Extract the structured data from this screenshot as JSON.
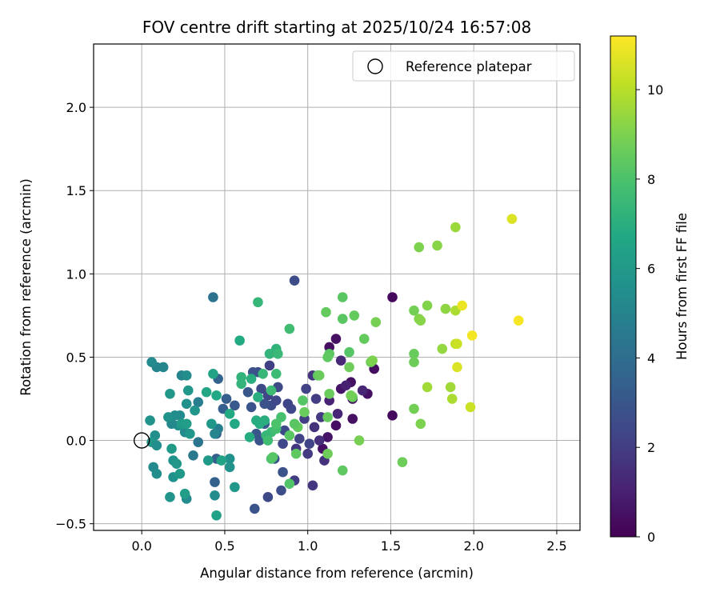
{
  "chart_data": {
    "type": "scatter",
    "title": "FOV centre drift starting at 2025/10/24 16:57:08",
    "xlabel": "Angular distance from reference (arcmin)",
    "ylabel": "Rotation from reference (arcmin)",
    "xlim": [
      -0.29,
      2.64
    ],
    "ylim": [
      -0.54,
      2.38
    ],
    "xticks": [
      "0.0",
      "0.5",
      "1.0",
      "1.5",
      "2.0",
      "2.5"
    ],
    "xtick_values": [
      0.0,
      0.5,
      1.0,
      1.5,
      2.0,
      2.5
    ],
    "yticks": [
      "−0.5",
      "0.0",
      "0.5",
      "1.0",
      "1.5",
      "2.0"
    ],
    "ytick_values": [
      -0.5,
      0.0,
      0.5,
      1.0,
      1.5,
      2.0
    ],
    "grid": true,
    "colormap": "viridis",
    "colorbar": {
      "label": "Hours from first FF file",
      "min": 0,
      "max": 11.2,
      "ticks": [
        "0",
        "2",
        "4",
        "6",
        "8",
        "10"
      ],
      "tick_values": [
        0,
        2,
        4,
        6,
        8,
        10
      ]
    },
    "legend": {
      "position": "top-right",
      "entries": [
        "Reference platepar"
      ]
    },
    "reference_point": {
      "x": 0.0,
      "y": 0.0
    },
    "points": [
      {
        "x": 1.51,
        "y": 0.86,
        "h": 0.3
      },
      {
        "x": 1.51,
        "y": 0.15,
        "h": 0.3
      },
      {
        "x": 1.4,
        "y": 0.43,
        "h": 0.4
      },
      {
        "x": 1.36,
        "y": 0.28,
        "h": 0.5
      },
      {
        "x": 1.17,
        "y": 0.61,
        "h": 0.5
      },
      {
        "x": 1.13,
        "y": 0.56,
        "h": 0.4
      },
      {
        "x": 1.27,
        "y": 0.25,
        "h": 0.6
      },
      {
        "x": 1.26,
        "y": 0.35,
        "h": 0.5
      },
      {
        "x": 1.2,
        "y": 0.31,
        "h": 0.6
      },
      {
        "x": 1.17,
        "y": 0.09,
        "h": 0.4
      },
      {
        "x": 1.12,
        "y": 0.02,
        "h": 0.6
      },
      {
        "x": 1.09,
        "y": -0.05,
        "h": 0.5
      },
      {
        "x": 1.27,
        "y": 0.13,
        "h": 0.5
      },
      {
        "x": 1.33,
        "y": 0.3,
        "h": 1.2
      },
      {
        "x": 1.23,
        "y": 0.33,
        "h": 1.0
      },
      {
        "x": 1.18,
        "y": 0.16,
        "h": 1.2
      },
      {
        "x": 1.13,
        "y": 0.24,
        "h": 1.1
      },
      {
        "x": 1.2,
        "y": 0.48,
        "h": 1.3
      },
      {
        "x": 0.92,
        "y": 0.96,
        "h": 2.6
      },
      {
        "x": 0.92,
        "y": -0.24,
        "h": 2.0
      },
      {
        "x": 1.03,
        "y": -0.27,
        "h": 1.8
      },
      {
        "x": 1.03,
        "y": 0.39,
        "h": 1.7
      },
      {
        "x": 1.07,
        "y": 0.0,
        "h": 1.5
      },
      {
        "x": 1.1,
        "y": -0.12,
        "h": 1.6
      },
      {
        "x": 1.04,
        "y": 0.08,
        "h": 1.6
      },
      {
        "x": 1.0,
        "y": -0.08,
        "h": 1.9
      },
      {
        "x": 0.98,
        "y": 0.13,
        "h": 2.0
      },
      {
        "x": 1.05,
        "y": 0.25,
        "h": 2.0
      },
      {
        "x": 1.08,
        "y": 0.14,
        "h": 1.9
      },
      {
        "x": 0.99,
        "y": 0.31,
        "h": 2.2
      },
      {
        "x": 0.95,
        "y": 0.01,
        "h": 2.2
      },
      {
        "x": 0.93,
        "y": -0.05,
        "h": 1.8
      },
      {
        "x": 1.01,
        "y": -0.02,
        "h": 2.3
      },
      {
        "x": 0.9,
        "y": 0.19,
        "h": 2.4
      },
      {
        "x": 0.88,
        "y": 0.22,
        "h": 2.3
      },
      {
        "x": 0.85,
        "y": -0.02,
        "h": 2.4
      },
      {
        "x": 0.86,
        "y": 0.06,
        "h": 2.5
      },
      {
        "x": 0.82,
        "y": 0.32,
        "h": 2.5
      },
      {
        "x": 0.76,
        "y": 0.27,
        "h": 2.3
      },
      {
        "x": 0.77,
        "y": 0.45,
        "h": 2.1
      },
      {
        "x": 0.78,
        "y": 0.21,
        "h": 2.6
      },
      {
        "x": 0.81,
        "y": 0.24,
        "h": 2.4
      },
      {
        "x": 0.74,
        "y": 0.22,
        "h": 2.8
      },
      {
        "x": 0.72,
        "y": 0.31,
        "h": 2.5
      },
      {
        "x": 0.7,
        "y": 0.41,
        "h": 2.6
      },
      {
        "x": 0.67,
        "y": 0.41,
        "h": 2.8
      },
      {
        "x": 0.66,
        "y": 0.2,
        "h": 2.9
      },
      {
        "x": 0.64,
        "y": 0.29,
        "h": 3.0
      },
      {
        "x": 0.68,
        "y": -0.41,
        "h": 2.9
      },
      {
        "x": 0.76,
        "y": -0.34,
        "h": 2.5
      },
      {
        "x": 0.84,
        "y": -0.3,
        "h": 2.6
      },
      {
        "x": 0.85,
        "y": -0.19,
        "h": 2.8
      },
      {
        "x": 0.8,
        "y": -0.11,
        "h": 2.8
      },
      {
        "x": 0.71,
        "y": 0.0,
        "h": 2.9
      },
      {
        "x": 0.69,
        "y": 0.04,
        "h": 3.0
      },
      {
        "x": 0.74,
        "y": 0.1,
        "h": 3.1
      },
      {
        "x": 0.56,
        "y": 0.21,
        "h": 3.1
      },
      {
        "x": 0.51,
        "y": 0.25,
        "h": 3.3
      },
      {
        "x": 0.49,
        "y": 0.19,
        "h": 3.4
      },
      {
        "x": 0.46,
        "y": 0.37,
        "h": 3.6
      },
      {
        "x": 0.45,
        "y": 0.04,
        "h": 3.3
      },
      {
        "x": 0.45,
        "y": -0.11,
        "h": 3.4
      },
      {
        "x": 0.44,
        "y": -0.25,
        "h": 3.5
      },
      {
        "x": 0.43,
        "y": 0.86,
        "h": 4.2
      },
      {
        "x": 0.34,
        "y": -0.01,
        "h": 4.4
      },
      {
        "x": 0.31,
        "y": -0.09,
        "h": 4.5
      },
      {
        "x": 0.34,
        "y": 0.23,
        "h": 4.7
      },
      {
        "x": 0.24,
        "y": 0.39,
        "h": 5.0
      },
      {
        "x": 0.46,
        "y": 0.07,
        "h": 4.7
      },
      {
        "x": 0.27,
        "y": -0.35,
        "h": 5.3
      },
      {
        "x": 0.44,
        "y": -0.33,
        "h": 5.4
      },
      {
        "x": 0.44,
        "y": 0.04,
        "h": 5.0
      },
      {
        "x": 0.53,
        "y": -0.11,
        "h": 5.6
      },
      {
        "x": 0.53,
        "y": -0.16,
        "h": 5.7
      },
      {
        "x": 0.56,
        "y": -0.28,
        "h": 5.9
      },
      {
        "x": 0.42,
        "y": 0.1,
        "h": 5.9
      },
      {
        "x": 0.27,
        "y": 0.22,
        "h": 5.6
      },
      {
        "x": 0.26,
        "y": 0.05,
        "h": 5.3
      },
      {
        "x": 0.27,
        "y": 0.39,
        "h": 5.4
      },
      {
        "x": 0.32,
        "y": 0.18,
        "h": 5.8
      },
      {
        "x": 0.28,
        "y": 0.3,
        "h": 5.9
      },
      {
        "x": 0.23,
        "y": 0.15,
        "h": 5.3
      },
      {
        "x": 0.22,
        "y": 0.09,
        "h": 5.6
      },
      {
        "x": 0.2,
        "y": 0.15,
        "h": 5.4
      },
      {
        "x": 0.18,
        "y": 0.1,
        "h": 5.2
      },
      {
        "x": 0.16,
        "y": 0.14,
        "h": 5.6
      },
      {
        "x": 0.13,
        "y": 0.44,
        "h": 5.1
      },
      {
        "x": 0.09,
        "y": 0.44,
        "h": 5.0
      },
      {
        "x": 0.06,
        "y": 0.47,
        "h": 5.3
      },
      {
        "x": 0.08,
        "y": 0.03,
        "h": 5.5
      },
      {
        "x": 0.05,
        "y": 0.12,
        "h": 5.7
      },
      {
        "x": 0.06,
        "y": -0.01,
        "h": 5.9
      },
      {
        "x": 0.09,
        "y": -0.03,
        "h": 5.5
      },
      {
        "x": 0.07,
        "y": -0.16,
        "h": 5.3
      },
      {
        "x": 0.09,
        "y": -0.2,
        "h": 5.4
      },
      {
        "x": 0.17,
        "y": -0.34,
        "h": 5.8
      },
      {
        "x": 0.19,
        "y": -0.22,
        "h": 5.6
      },
      {
        "x": 0.19,
        "y": -0.12,
        "h": 5.7
      },
      {
        "x": 0.21,
        "y": -0.14,
        "h": 5.9
      },
      {
        "x": 0.23,
        "y": -0.2,
        "h": 6.0
      },
      {
        "x": 0.18,
        "y": -0.05,
        "h": 6.1
      },
      {
        "x": 0.26,
        "y": -0.32,
        "h": 6.2
      },
      {
        "x": 0.17,
        "y": 0.28,
        "h": 5.9
      },
      {
        "x": 0.24,
        "y": 0.1,
        "h": 6.1
      },
      {
        "x": 0.27,
        "y": 0.1,
        "h": 6.2
      },
      {
        "x": 0.29,
        "y": 0.04,
        "h": 5.9
      },
      {
        "x": 0.4,
        "y": -0.12,
        "h": 6.0
      },
      {
        "x": 0.45,
        "y": -0.45,
        "h": 6.4
      },
      {
        "x": 0.48,
        "y": -0.12,
        "h": 6.5
      },
      {
        "x": 0.43,
        "y": 0.4,
        "h": 6.5
      },
      {
        "x": 0.39,
        "y": 0.29,
        "h": 6.6
      },
      {
        "x": 0.45,
        "y": 0.27,
        "h": 6.7
      },
      {
        "x": 0.56,
        "y": 0.1,
        "h": 6.7
      },
      {
        "x": 0.53,
        "y": 0.16,
        "h": 6.8
      },
      {
        "x": 0.59,
        "y": 0.6,
        "h": 6.8
      },
      {
        "x": 0.65,
        "y": 0.02,
        "h": 6.9
      },
      {
        "x": 0.66,
        "y": 0.37,
        "h": 7.0
      },
      {
        "x": 0.69,
        "y": 0.12,
        "h": 6.9
      },
      {
        "x": 0.7,
        "y": 0.26,
        "h": 7.0
      },
      {
        "x": 0.71,
        "y": 0.1,
        "h": 6.9
      },
      {
        "x": 0.74,
        "y": 0.12,
        "h": 7.0
      },
      {
        "x": 0.7,
        "y": 0.83,
        "h": 7.4
      },
      {
        "x": 0.6,
        "y": 0.38,
        "h": 7.2
      },
      {
        "x": 0.6,
        "y": 0.34,
        "h": 7.3
      },
      {
        "x": 0.73,
        "y": 0.4,
        "h": 7.4
      },
      {
        "x": 0.78,
        "y": 0.3,
        "h": 7.6
      },
      {
        "x": 0.77,
        "y": 0.52,
        "h": 7.3
      },
      {
        "x": 0.81,
        "y": 0.55,
        "h": 7.2
      },
      {
        "x": 0.82,
        "y": 0.52,
        "h": 7.5
      },
      {
        "x": 0.81,
        "y": 0.4,
        "h": 7.6
      },
      {
        "x": 0.89,
        "y": 0.67,
        "h": 7.7
      },
      {
        "x": 0.78,
        "y": 0.05,
        "h": 7.6
      },
      {
        "x": 0.75,
        "y": 0.03,
        "h": 7.4
      },
      {
        "x": 0.76,
        "y": -0.0,
        "h": 7.7
      },
      {
        "x": 0.81,
        "y": 0.07,
        "h": 7.8
      },
      {
        "x": 0.84,
        "y": 0.14,
        "h": 7.9
      },
      {
        "x": 0.81,
        "y": 0.1,
        "h": 8.0
      },
      {
        "x": 0.78,
        "y": -0.11,
        "h": 8.0
      },
      {
        "x": 0.79,
        "y": -0.1,
        "h": 8.2
      },
      {
        "x": 0.89,
        "y": -0.26,
        "h": 8.1
      },
      {
        "x": 0.89,
        "y": 0.03,
        "h": 8.3
      },
      {
        "x": 0.93,
        "y": -0.08,
        "h": 8.4
      },
      {
        "x": 0.94,
        "y": 0.08,
        "h": 8.5
      },
      {
        "x": 0.97,
        "y": 0.24,
        "h": 8.2
      },
      {
        "x": 0.98,
        "y": 0.17,
        "h": 8.6
      },
      {
        "x": 0.92,
        "y": 0.1,
        "h": 8.3
      },
      {
        "x": 1.06,
        "y": 0.39,
        "h": 8.3
      },
      {
        "x": 1.07,
        "y": 0.39,
        "h": 8.6
      },
      {
        "x": 1.11,
        "y": 0.77,
        "h": 8.5
      },
      {
        "x": 1.13,
        "y": 0.52,
        "h": 8.3
      },
      {
        "x": 1.12,
        "y": 0.5,
        "h": 8.4
      },
      {
        "x": 1.13,
        "y": 0.28,
        "h": 8.6
      },
      {
        "x": 1.12,
        "y": 0.14,
        "h": 8.5
      },
      {
        "x": 1.12,
        "y": -0.08,
        "h": 8.7
      },
      {
        "x": 1.21,
        "y": -0.18,
        "h": 8.4
      },
      {
        "x": 1.21,
        "y": 0.73,
        "h": 8.3
      },
      {
        "x": 1.21,
        "y": 0.86,
        "h": 8.3
      },
      {
        "x": 1.28,
        "y": 0.75,
        "h": 8.5
      },
      {
        "x": 1.25,
        "y": 0.53,
        "h": 8.2
      },
      {
        "x": 1.25,
        "y": 0.44,
        "h": 8.7
      },
      {
        "x": 1.27,
        "y": 0.26,
        "h": 8.6
      },
      {
        "x": 1.26,
        "y": 0.27,
        "h": 8.8
      },
      {
        "x": 1.31,
        "y": 0.0,
        "h": 8.9
      },
      {
        "x": 1.34,
        "y": 0.61,
        "h": 8.5
      },
      {
        "x": 1.38,
        "y": 0.47,
        "h": 8.7
      },
      {
        "x": 1.41,
        "y": 0.71,
        "h": 8.9
      },
      {
        "x": 1.39,
        "y": 0.48,
        "h": 9.0
      },
      {
        "x": 1.57,
        "y": -0.13,
        "h": 8.7
      },
      {
        "x": 1.64,
        "y": 0.78,
        "h": 8.8
      },
      {
        "x": 1.64,
        "y": 0.52,
        "h": 8.6
      },
      {
        "x": 1.64,
        "y": 0.47,
        "h": 8.7
      },
      {
        "x": 1.64,
        "y": 0.19,
        "h": 8.8
      },
      {
        "x": 1.67,
        "y": 1.16,
        "h": 9.0
      },
      {
        "x": 1.67,
        "y": 0.73,
        "h": 9.1
      },
      {
        "x": 1.68,
        "y": 0.72,
        "h": 9.2
      },
      {
        "x": 1.68,
        "y": 0.1,
        "h": 9.0
      },
      {
        "x": 1.72,
        "y": 0.81,
        "h": 9.1
      },
      {
        "x": 1.72,
        "y": 0.32,
        "h": 9.6
      },
      {
        "x": 1.78,
        "y": 1.17,
        "h": 9.2
      },
      {
        "x": 1.81,
        "y": 0.55,
        "h": 9.4
      },
      {
        "x": 1.83,
        "y": 0.79,
        "h": 9.3
      },
      {
        "x": 1.86,
        "y": 0.32,
        "h": 9.6
      },
      {
        "x": 1.87,
        "y": 0.25,
        "h": 9.8
      },
      {
        "x": 1.89,
        "y": 1.28,
        "h": 9.5
      },
      {
        "x": 1.89,
        "y": 0.78,
        "h": 9.8
      },
      {
        "x": 1.89,
        "y": 0.58,
        "h": 10.1
      },
      {
        "x": 1.9,
        "y": 0.58,
        "h": 10.3
      },
      {
        "x": 1.9,
        "y": 0.44,
        "h": 10.6
      },
      {
        "x": 1.93,
        "y": 0.81,
        "h": 10.9
      },
      {
        "x": 1.98,
        "y": 0.2,
        "h": 10.3
      },
      {
        "x": 1.99,
        "y": 0.63,
        "h": 11.0
      },
      {
        "x": 2.23,
        "y": 1.33,
        "h": 10.6
      },
      {
        "x": 2.27,
        "y": 0.72,
        "h": 11.1
      }
    ],
    "colors": {
      "grid": "#b0b0b0",
      "axes": "#000000",
      "background": "#ffffff"
    }
  }
}
